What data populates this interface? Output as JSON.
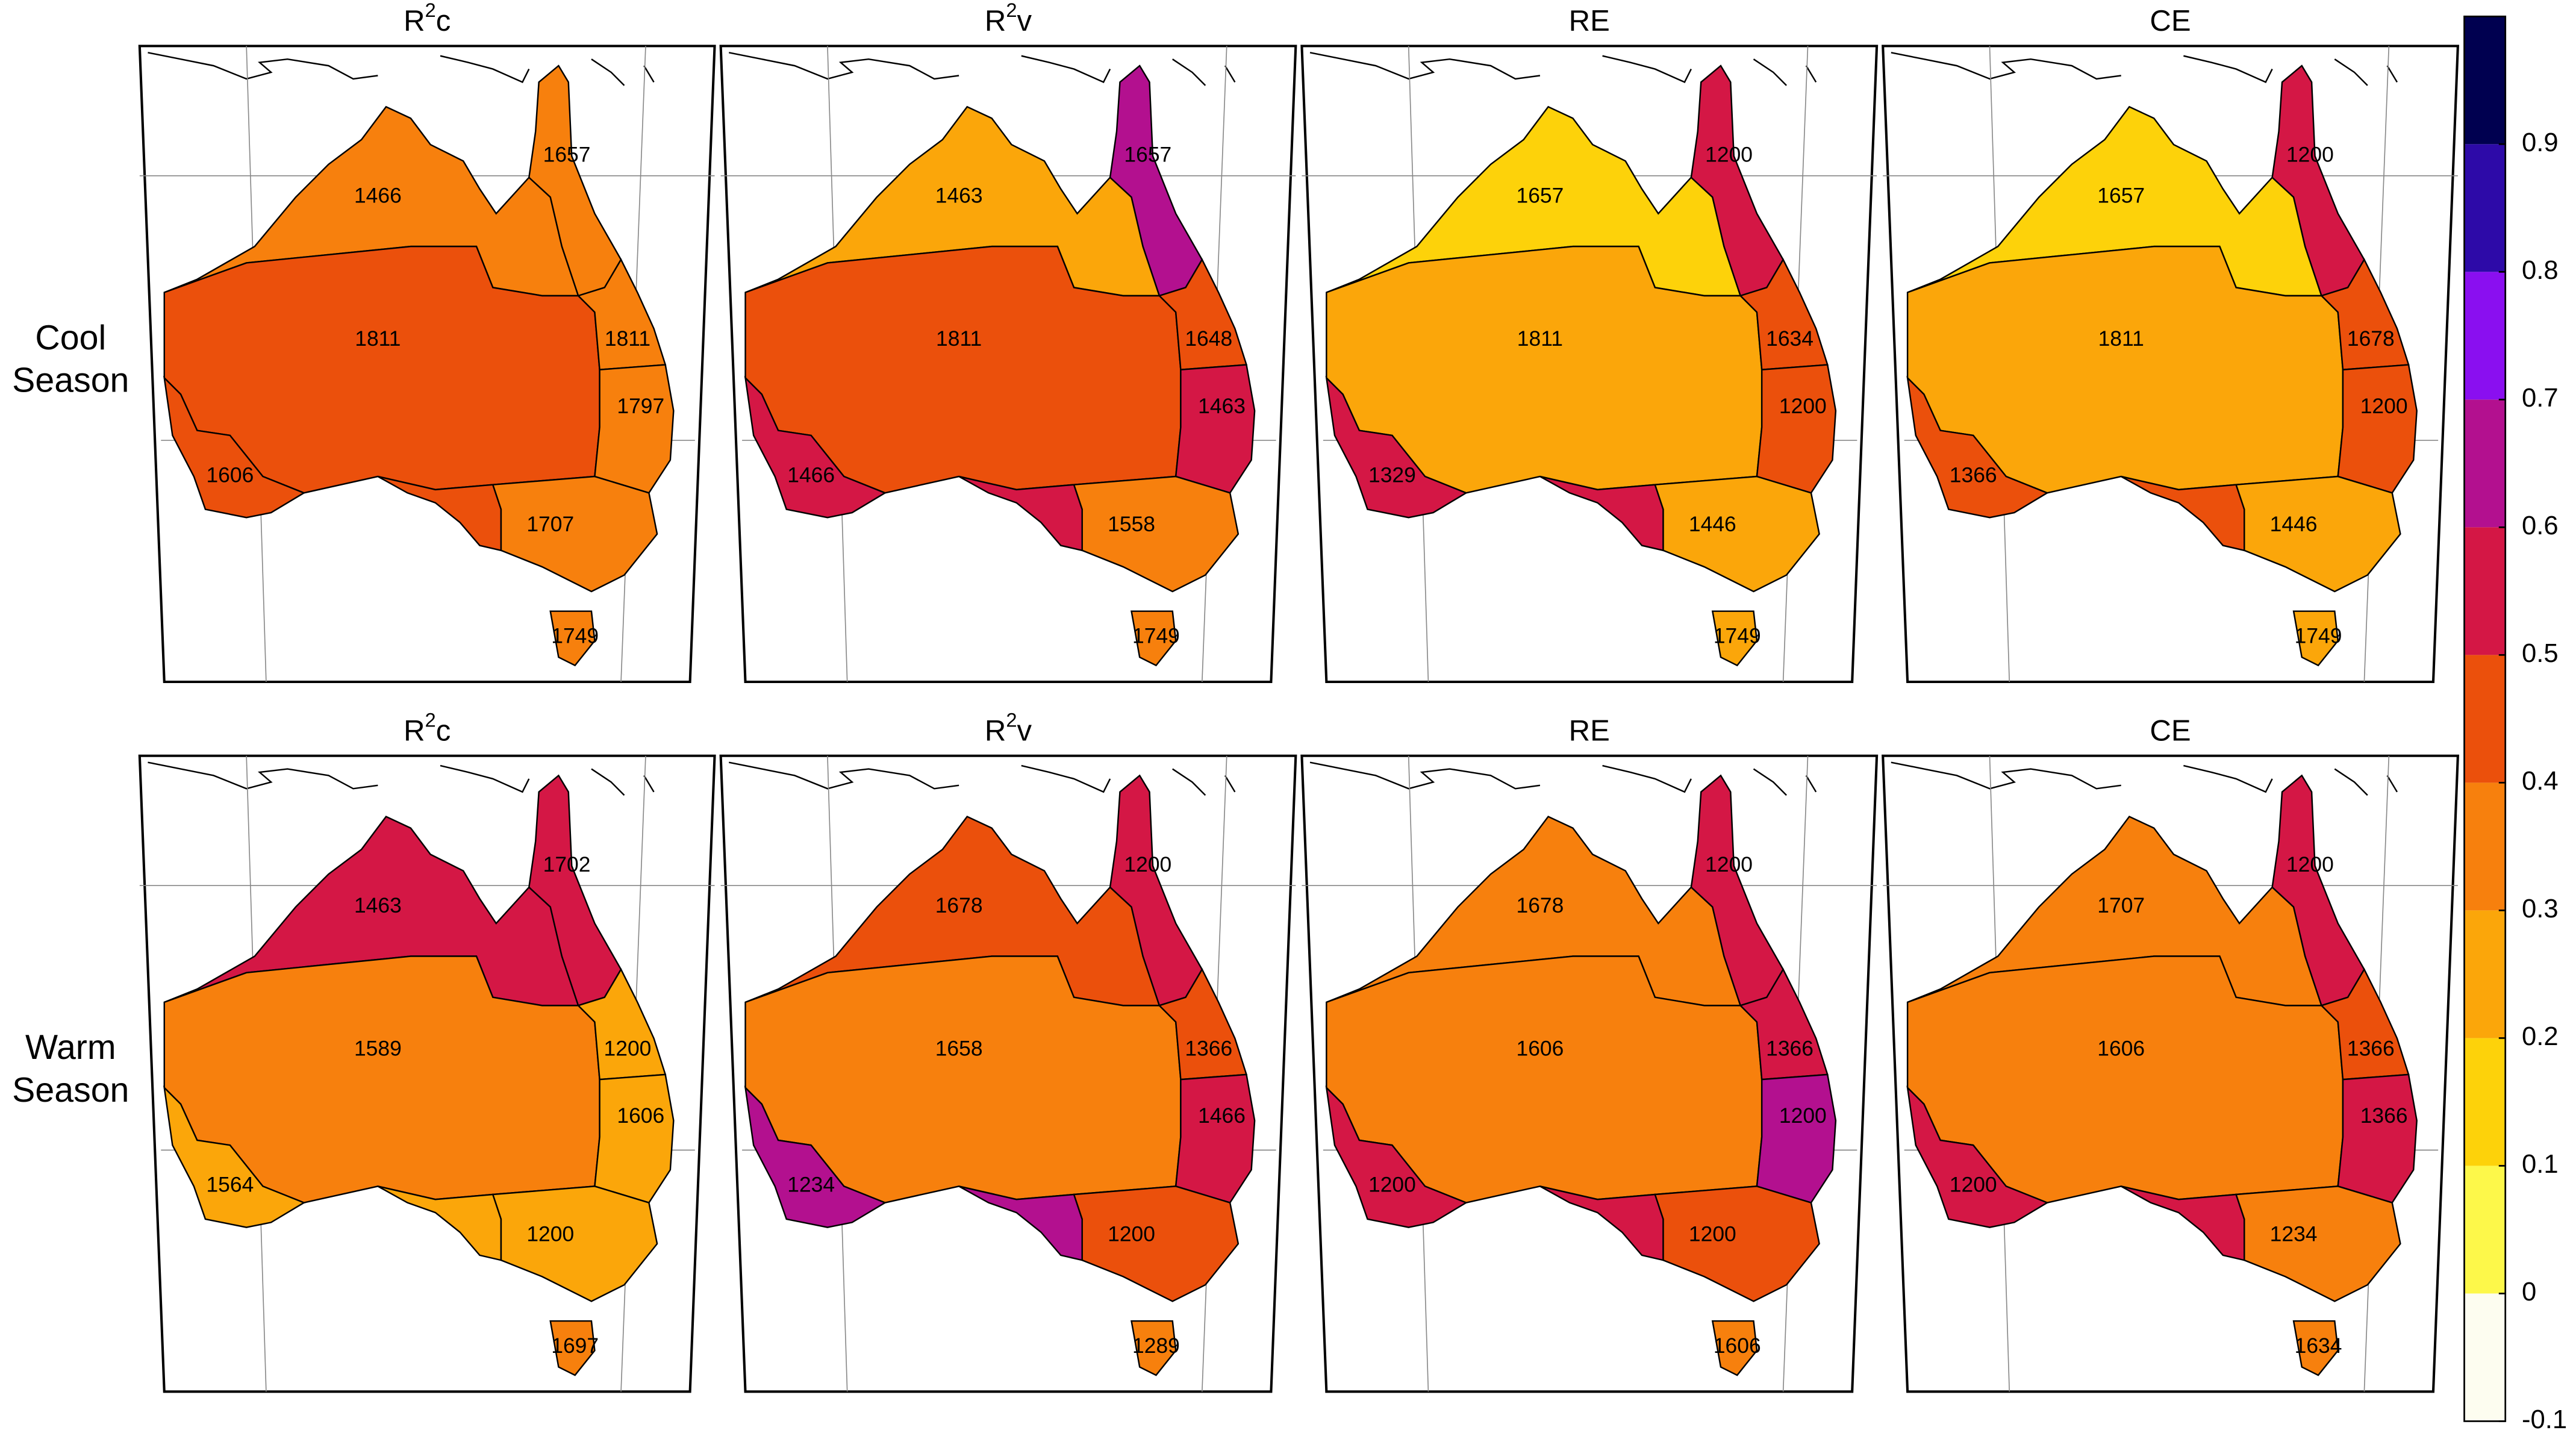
{
  "rows": [
    {
      "label": [
        "Cool",
        "Season"
      ]
    },
    {
      "label": [
        "Warm",
        "Season"
      ]
    }
  ],
  "panels": [
    {
      "title": [
        "R",
        "2",
        "c"
      ],
      "regions": [
        {
          "value": 0.35,
          "label": 1466
        },
        {
          "value": 0.35,
          "label": 1657
        },
        {
          "value": 0.45,
          "label": 1811
        },
        {
          "value": 0.35,
          "label": 1811
        },
        {
          "value": 0.35,
          "label": 1797
        },
        {
          "value": 0.45,
          "label": 1606
        },
        {
          "value": 0.45,
          "label": null
        },
        {
          "value": 0.35,
          "label": 1707
        },
        {
          "value": 0.35,
          "label": 1749
        }
      ]
    },
    {
      "title": [
        "R",
        "2",
        "v"
      ],
      "regions": [
        {
          "value": 0.25,
          "label": 1463
        },
        {
          "value": 0.65,
          "label": 1657
        },
        {
          "value": 0.45,
          "label": 1811
        },
        {
          "value": 0.45,
          "label": 1648
        },
        {
          "value": 0.55,
          "label": 1463
        },
        {
          "value": 0.55,
          "label": 1466
        },
        {
          "value": 0.55,
          "label": null
        },
        {
          "value": 0.35,
          "label": 1558
        },
        {
          "value": 0.35,
          "label": 1749
        }
      ]
    },
    {
      "title": [
        "RE"
      ],
      "regions": [
        {
          "value": 0.15,
          "label": 1657
        },
        {
          "value": 0.55,
          "label": 1200
        },
        {
          "value": 0.25,
          "label": 1811
        },
        {
          "value": 0.45,
          "label": 1634
        },
        {
          "value": 0.45,
          "label": 1200
        },
        {
          "value": 0.55,
          "label": 1329
        },
        {
          "value": 0.55,
          "label": null
        },
        {
          "value": 0.25,
          "label": 1446
        },
        {
          "value": 0.25,
          "label": 1749
        }
      ]
    },
    {
      "title": [
        "CE"
      ],
      "regions": [
        {
          "value": 0.15,
          "label": 1657
        },
        {
          "value": 0.55,
          "label": 1200
        },
        {
          "value": 0.25,
          "label": 1811
        },
        {
          "value": 0.45,
          "label": 1678
        },
        {
          "value": 0.45,
          "label": 1200
        },
        {
          "value": 0.45,
          "label": 1366
        },
        {
          "value": 0.45,
          "label": null
        },
        {
          "value": 0.25,
          "label": 1446
        },
        {
          "value": 0.25,
          "label": 1749
        }
      ]
    },
    {
      "title": [
        "R",
        "2",
        "c"
      ],
      "regions": [
        {
          "value": 0.55,
          "label": 1463
        },
        {
          "value": 0.55,
          "label": 1702
        },
        {
          "value": 0.35,
          "label": 1589
        },
        {
          "value": 0.25,
          "label": 1200
        },
        {
          "value": 0.25,
          "label": 1606
        },
        {
          "value": 0.25,
          "label": 1564
        },
        {
          "value": 0.25,
          "label": null
        },
        {
          "value": 0.25,
          "label": 1200
        },
        {
          "value": 0.35,
          "label": 1697
        }
      ]
    },
    {
      "title": [
        "R",
        "2",
        "v"
      ],
      "regions": [
        {
          "value": 0.45,
          "label": 1678
        },
        {
          "value": 0.55,
          "label": 1200
        },
        {
          "value": 0.35,
          "label": 1658
        },
        {
          "value": 0.45,
          "label": 1366
        },
        {
          "value": 0.55,
          "label": 1466
        },
        {
          "value": 0.65,
          "label": 1234
        },
        {
          "value": 0.65,
          "label": null
        },
        {
          "value": 0.45,
          "label": 1200
        },
        {
          "value": 0.35,
          "label": 1289
        }
      ]
    },
    {
      "title": [
        "RE"
      ],
      "regions": [
        {
          "value": 0.35,
          "label": 1678
        },
        {
          "value": 0.55,
          "label": 1200
        },
        {
          "value": 0.35,
          "label": 1606
        },
        {
          "value": 0.55,
          "label": 1366
        },
        {
          "value": 0.65,
          "label": 1200
        },
        {
          "value": 0.55,
          "label": 1200
        },
        {
          "value": 0.55,
          "label": null
        },
        {
          "value": 0.45,
          "label": 1200
        },
        {
          "value": 0.35,
          "label": 1606
        }
      ]
    },
    {
      "title": [
        "CE"
      ],
      "regions": [
        {
          "value": 0.35,
          "label": 1707
        },
        {
          "value": 0.55,
          "label": 1200
        },
        {
          "value": 0.35,
          "label": 1606
        },
        {
          "value": 0.45,
          "label": 1366
        },
        {
          "value": 0.55,
          "label": 1366
        },
        {
          "value": 0.55,
          "label": 1200
        },
        {
          "value": 0.55,
          "label": null
        },
        {
          "value": 0.35,
          "label": 1234
        },
        {
          "value": 0.35,
          "label": 1634
        }
      ]
    }
  ],
  "colorbar": {
    "ylim": [
      -0.1,
      1.0
    ],
    "yticks": [
      -0.1,
      0,
      0.1,
      0.2,
      0.3,
      0.4,
      0.5,
      0.6,
      0.7,
      0.8,
      0.9
    ],
    "colors": [
      "#fdfdf0",
      "#fdf84a",
      "#fdd20a",
      "#fba60a",
      "#f7800d",
      "#eb500c",
      "#d41745",
      "#b3108f",
      "#8a0ff0",
      "#2d0aa8",
      "#000050"
    ]
  }
}
